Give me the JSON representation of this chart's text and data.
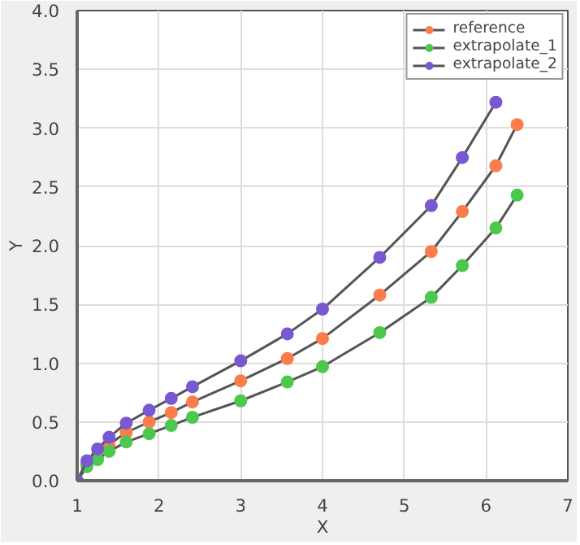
{
  "chart_data": {
    "type": "line",
    "xlabel": "X",
    "ylabel": "Y",
    "xlim": [
      1,
      7
    ],
    "xticks": [
      1,
      2,
      3,
      4,
      5,
      6,
      7
    ],
    "ylim": [
      0,
      4
    ],
    "yticks": [
      {
        "value": 0,
        "label": "0.0"
      },
      {
        "value": 0.5,
        "label": "0.5"
      },
      {
        "value": 1,
        "label": "1.0"
      },
      {
        "value": 1.5,
        "label": "1.5"
      },
      {
        "value": 2,
        "label": "2.0"
      },
      {
        "value": 2.5,
        "label": "2.5"
      },
      {
        "value": 3,
        "label": "3.0"
      },
      {
        "value": 3.5,
        "label": "3.5"
      },
      {
        "value": 4,
        "label": "4.0"
      }
    ],
    "x": [
      1,
      1.12,
      1.25,
      1.39,
      1.6,
      1.88,
      2.15,
      2.41,
      3.0,
      3.57,
      4.0,
      4.7,
      5.33,
      5.71,
      6.12,
      6.38
    ],
    "series": [
      {
        "name": "reference",
        "color": "#fb7d4c",
        "values": [
          0,
          0.14,
          0.22,
          0.31,
          0.41,
          0.5,
          0.58,
          0.67,
          0.85,
          1.04,
          1.21,
          1.58,
          1.95,
          2.29,
          2.68,
          3.03
        ]
      },
      {
        "name": "extrapolate_1",
        "color": "#4cc94c",
        "values": [
          0,
          0.12,
          0.18,
          0.25,
          0.33,
          0.4,
          0.47,
          0.54,
          0.68,
          0.84,
          0.97,
          1.26,
          1.56,
          1.83,
          2.15,
          2.43
        ]
      },
      {
        "name": "extrapolate_2",
        "color": "#7a58d4",
        "values": [
          0,
          0.17,
          0.27,
          0.37,
          0.49,
          0.6,
          0.7,
          0.8,
          1.02,
          1.25,
          1.46,
          1.9,
          2.34,
          2.75,
          3.22,
          null
        ]
      }
    ],
    "grid": true,
    "legend": "top right",
    "marker": "circle",
    "line_style": "solid"
  }
}
